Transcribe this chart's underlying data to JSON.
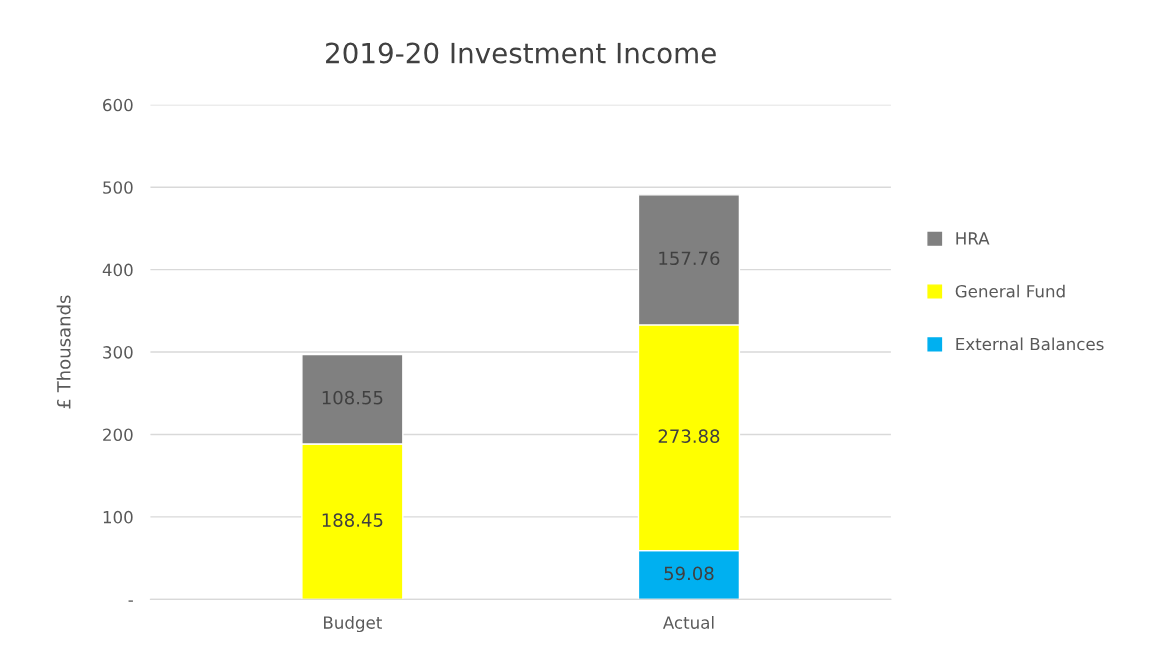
{
  "chart_data": {
    "type": "bar",
    "title": "2019-20 Investment Income",
    "ylabel": "£ Thousands",
    "categories": [
      "Budget",
      "Actual"
    ],
    "stacked": true,
    "series": [
      {
        "name": "External Balances",
        "color": "#00b0f0",
        "values": [
          null,
          59.08
        ]
      },
      {
        "name": "General Fund",
        "color": "#ffff00",
        "values": [
          188.45,
          273.88
        ]
      },
      {
        "name": "HRA",
        "color": "#808080",
        "values": [
          108.55,
          157.76
        ]
      }
    ],
    "ylim": [
      0,
      600
    ],
    "yticks": [
      {
        "value": 0,
        "label": "-"
      },
      100,
      200,
      300,
      400,
      500,
      600
    ],
    "grid": "y",
    "legend": "right",
    "data_labels": true
  }
}
